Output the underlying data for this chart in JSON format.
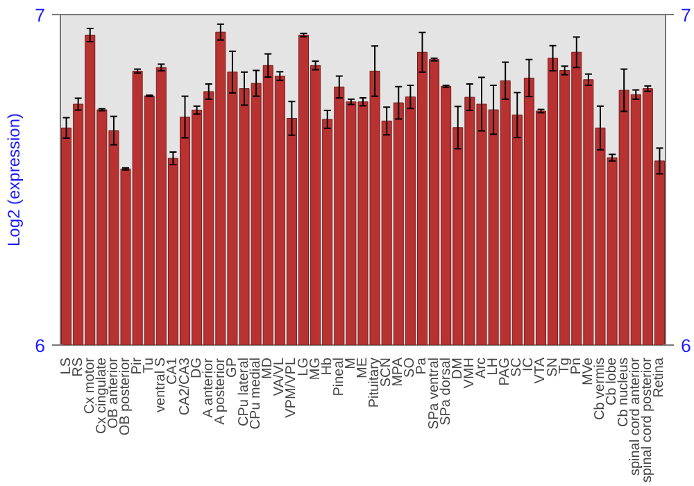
{
  "chart_data": {
    "type": "bar",
    "ylabel": "Log2 (expression)",
    "categories": [
      "LS",
      "RS",
      "Cx motor",
      "Cx cingulate",
      "OB anterior",
      "OB posterior",
      "Pir",
      "Tu",
      "ventral S",
      "CA1",
      "CA2/CA3",
      "DG",
      "A anterior",
      "A posterior",
      "GP",
      "CPu lateral",
      "CPu medial",
      "MD",
      "VA/VL",
      "VPM/VPL",
      "LG",
      "MG",
      "Hb",
      "Pineal",
      "M",
      "ME",
      "Pituitary",
      "SCN",
      "MPA",
      "SO",
      "Pa",
      "SPa ventral",
      "SPa dorsal",
      "DM",
      "VMH",
      "Arc",
      "LH",
      "PAG",
      "SC",
      "IC",
      "VTA",
      "SN",
      "Tg",
      "Pn",
      "MVe",
      "Cb vermis",
      "Cb lobe",
      "Cb nucleus",
      "spinal cord anterior",
      "spinal cord posterior",
      "Retina"
    ],
    "series": [
      {
        "color": "#b83232",
        "values": [
          6.657,
          6.729,
          6.938,
          6.712,
          6.649,
          6.533,
          6.829,
          6.754,
          6.84,
          6.565,
          6.69,
          6.711,
          6.767,
          6.947,
          6.826,
          6.776,
          6.792,
          6.846,
          6.814,
          6.686,
          6.938,
          6.846,
          6.683,
          6.781,
          6.736,
          6.736,
          6.829,
          6.678,
          6.733,
          6.751,
          6.886,
          6.864,
          6.783,
          6.658,
          6.75,
          6.729,
          6.712,
          6.8,
          6.696,
          6.808,
          6.708,
          6.868,
          6.831,
          6.886,
          6.803,
          6.657,
          6.567,
          6.771,
          6.758,
          6.776,
          6.557
        ],
        "errors": [
          0.031,
          0.018,
          0.02,
          0.003,
          0.043,
          0.003,
          0.006,
          0.002,
          0.01,
          0.019,
          0.063,
          0.012,
          0.023,
          0.024,
          0.063,
          0.05,
          0.039,
          0.035,
          0.013,
          0.051,
          0.005,
          0.013,
          0.027,
          0.033,
          0.008,
          0.012,
          0.076,
          0.042,
          0.049,
          0.035,
          0.06,
          0.004,
          0.003,
          0.064,
          0.04,
          0.081,
          0.074,
          0.056,
          0.068,
          0.056,
          0.005,
          0.038,
          0.013,
          0.046,
          0.017,
          0.066,
          0.01,
          0.064,
          0.014,
          0.008,
          0.039
        ]
      }
    ],
    "ylim": [
      6,
      7
    ],
    "yticks": [
      6,
      7
    ],
    "y2lim": [
      6,
      7
    ],
    "y2ticks": [
      6,
      7
    ],
    "grid": false
  }
}
